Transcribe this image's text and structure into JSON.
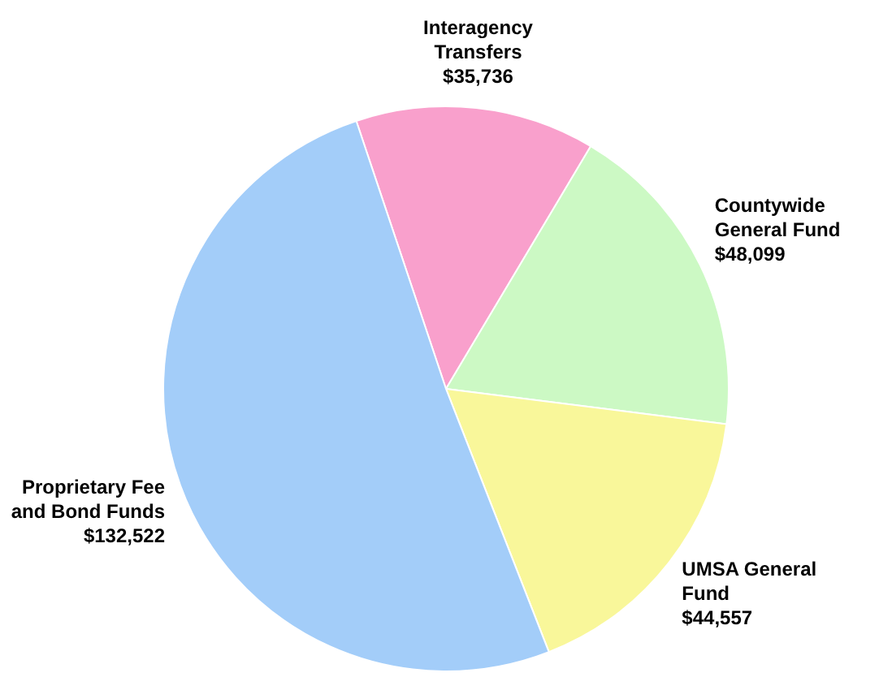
{
  "chart_data": {
    "type": "pie",
    "categories": [
      "Interagency Transfers",
      "Countywide General Fund",
      "UMSA General Fund",
      "Proprietary Fee and Bond Funds"
    ],
    "values": [
      35736,
      48099,
      44557,
      132522
    ],
    "value_labels": [
      "$35,736",
      "$48,099",
      "$44,557",
      "$132,522"
    ],
    "colors": [
      "#f9a0cc",
      "#ccf9c4",
      "#f9f79a",
      "#a3cdf9"
    ],
    "legend": false
  }
}
